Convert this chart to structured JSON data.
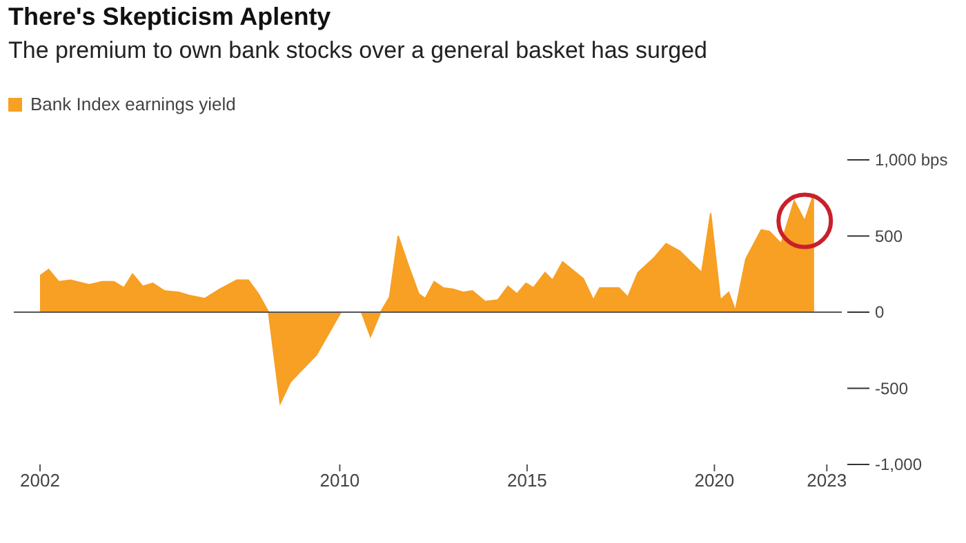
{
  "chart_data": {
    "type": "area",
    "title": "There's Skepticism Aplenty",
    "subtitle": "The premium to own bank stocks over a general basket has surged",
    "series": [
      {
        "name": "Bank Index earnings yield",
        "color": "#f7a023",
        "x": [
          2002.0,
          2002.23,
          2002.5,
          2002.81,
          2003.31,
          2003.66,
          2003.97,
          2004.24,
          2004.47,
          2004.74,
          2005.01,
          2005.32,
          2005.71,
          2005.98,
          2006.4,
          2006.79,
          2007.25,
          2007.56,
          2007.83,
          2008.1,
          2008.41,
          2008.68,
          2008.91,
          2009.38,
          2010.03,
          2010.58,
          2010.82,
          2011.09,
          2011.33,
          2011.56,
          2011.84,
          2012.11,
          2012.28,
          2012.52,
          2012.76,
          2013.03,
          2013.3,
          2013.54,
          2013.88,
          2014.22,
          2014.49,
          2014.73,
          2014.97,
          2015.17,
          2015.48,
          2015.68,
          2015.95,
          2016.5,
          2016.77,
          2016.94,
          2017.45,
          2017.69,
          2017.96,
          2018.4,
          2018.71,
          2019.08,
          2019.66,
          2019.9,
          2020.16,
          2020.38,
          2020.56,
          2020.84,
          2021.25,
          2021.47,
          2021.78,
          2022.13,
          2022.41,
          2022.66
        ],
        "values": [
          240,
          280,
          200,
          210,
          180,
          200,
          200,
          160,
          250,
          170,
          190,
          140,
          130,
          110,
          90,
          150,
          210,
          210,
          120,
          0,
          -600,
          -460,
          -400,
          -280,
          0,
          0,
          -160,
          0,
          100,
          500,
          300,
          120,
          90,
          200,
          160,
          150,
          130,
          140,
          70,
          80,
          170,
          120,
          190,
          160,
          260,
          210,
          330,
          220,
          80,
          160,
          160,
          100,
          260,
          360,
          450,
          400,
          260,
          650,
          80,
          130,
          10,
          350,
          540,
          530,
          450,
          730,
          600,
          780
        ]
      }
    ],
    "xlim": [
      2001.3,
      2023.4
    ],
    "xticks": [
      2002,
      2010,
      2015,
      2020,
      2023
    ],
    "ylim": [
      -1000,
      1000
    ],
    "yticks": [
      {
        "value": 1000,
        "label": "1,000 bps"
      },
      500,
      0,
      -500,
      {
        "value": -1000,
        "label": "-1,000"
      }
    ],
    "ref_lines": [
      {
        "axis": "y",
        "value": 0,
        "color": "#555555"
      }
    ],
    "grid": false,
    "legend": "top left"
  }
}
